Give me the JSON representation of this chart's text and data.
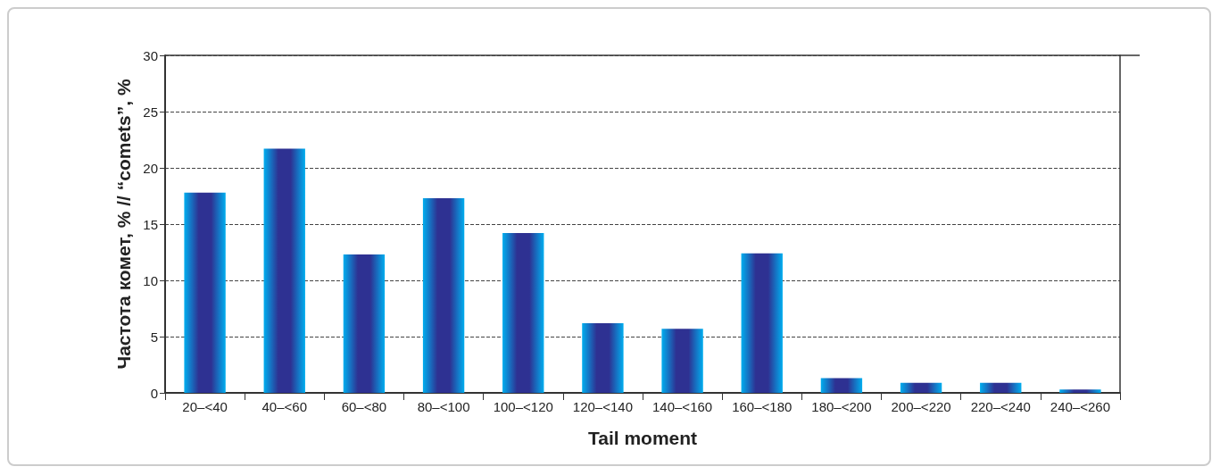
{
  "chart_data": {
    "type": "bar",
    "xlabel": "Tail moment",
    "ylabel": "Частота комет, % // “comets”, %",
    "categories": [
      "20–<40",
      "40–<60",
      "60–<80",
      "80–<100",
      "100–<120",
      "120–<140",
      "140–<160",
      "160–<180",
      "180–<200",
      "200–<220",
      "220–<240",
      "240–<260"
    ],
    "values": [
      17.8,
      21.7,
      12.3,
      17.3,
      14.2,
      6.2,
      5.7,
      12.4,
      1.3,
      0.9,
      0.9,
      0.3
    ],
    "color": "#2e3192",
    "ylim": [
      0,
      30
    ],
    "yticks": [
      0,
      5,
      10,
      15,
      20,
      25,
      30
    ],
    "grid": "y"
  }
}
